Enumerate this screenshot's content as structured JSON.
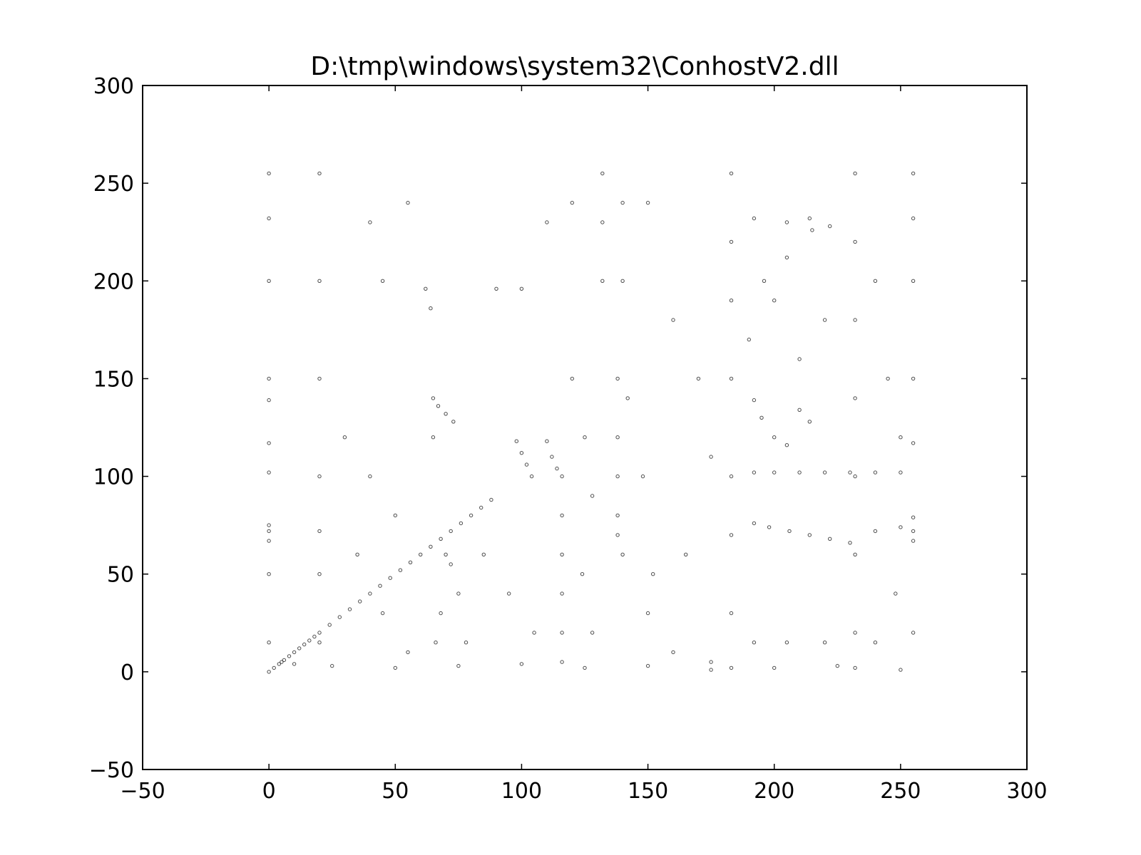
{
  "chart_data": {
    "type": "scatter",
    "title": "D:\\tmp\\windows\\system32\\ConhostV2.dll",
    "xlabel": "",
    "ylabel": "",
    "xlim": [
      -50,
      300
    ],
    "ylim": [
      -50,
      300
    ],
    "xticks": [
      -50,
      0,
      50,
      100,
      150,
      200,
      250,
      300
    ],
    "yticks": [
      -50,
      0,
      50,
      100,
      150,
      200,
      250,
      300
    ],
    "xtick_labels": [
      "−50",
      "0",
      "50",
      "100",
      "150",
      "200",
      "250",
      "300"
    ],
    "ytick_labels": [
      "−50",
      "0",
      "50",
      "100",
      "150",
      "200",
      "250",
      "300"
    ],
    "grid": false,
    "legend": "none",
    "marker_color": "#000000",
    "point_domain": {
      "x": [
        0,
        255
      ],
      "y": [
        0,
        255
      ]
    },
    "series": [
      {
        "points": [
          [
            0,
            0
          ],
          [
            2,
            2
          ],
          [
            4,
            4
          ],
          [
            6,
            6
          ],
          [
            8,
            8
          ],
          [
            10,
            10
          ],
          [
            12,
            12
          ],
          [
            14,
            14
          ],
          [
            16,
            16
          ],
          [
            18,
            18
          ],
          [
            20,
            20
          ],
          [
            24,
            24
          ],
          [
            28,
            28
          ],
          [
            32,
            32
          ],
          [
            36,
            36
          ],
          [
            40,
            40
          ],
          [
            44,
            44
          ],
          [
            48,
            48
          ],
          [
            52,
            52
          ],
          [
            56,
            56
          ],
          [
            60,
            60
          ],
          [
            64,
            64
          ],
          [
            68,
            68
          ],
          [
            72,
            72
          ],
          [
            76,
            76
          ],
          [
            80,
            80
          ],
          [
            84,
            84
          ],
          [
            88,
            88
          ],
          [
            0,
            255
          ],
          [
            0,
            232
          ],
          [
            0,
            200
          ],
          [
            0,
            150
          ],
          [
            0,
            139
          ],
          [
            0,
            117
          ],
          [
            0,
            102
          ],
          [
            0,
            75
          ],
          [
            0,
            72
          ],
          [
            0,
            67
          ],
          [
            0,
            50
          ],
          [
            0,
            15
          ],
          [
            20,
            255
          ],
          [
            20,
            200
          ],
          [
            20,
            150
          ],
          [
            20,
            100
          ],
          [
            20,
            72
          ],
          [
            20,
            50
          ],
          [
            20,
            15
          ],
          [
            65,
            140
          ],
          [
            67,
            136
          ],
          [
            70,
            132
          ],
          [
            73,
            128
          ],
          [
            65,
            120
          ],
          [
            70,
            60
          ],
          [
            72,
            55
          ],
          [
            75,
            40
          ],
          [
            68,
            30
          ],
          [
            66,
            15
          ],
          [
            78,
            15
          ],
          [
            98,
            118
          ],
          [
            100,
            112
          ],
          [
            102,
            106
          ],
          [
            104,
            100
          ],
          [
            110,
            118
          ],
          [
            112,
            110
          ],
          [
            114,
            104
          ],
          [
            116,
            100
          ],
          [
            116,
            80
          ],
          [
            116,
            60
          ],
          [
            116,
            40
          ],
          [
            116,
            20
          ],
          [
            116,
            5
          ],
          [
            132,
            255
          ],
          [
            132,
            230
          ],
          [
            132,
            200
          ],
          [
            138,
            150
          ],
          [
            138,
            120
          ],
          [
            138,
            100
          ],
          [
            138,
            80
          ],
          [
            138,
            70
          ],
          [
            140,
            60
          ],
          [
            140,
            200
          ],
          [
            140,
            240
          ],
          [
            183,
            255
          ],
          [
            183,
            220
          ],
          [
            183,
            190
          ],
          [
            183,
            150
          ],
          [
            183,
            100
          ],
          [
            183,
            70
          ],
          [
            183,
            30
          ],
          [
            183,
            2
          ],
          [
            192,
            139
          ],
          [
            195,
            130
          ],
          [
            200,
            120
          ],
          [
            205,
            116
          ],
          [
            210,
            134
          ],
          [
            214,
            128
          ],
          [
            192,
            102
          ],
          [
            200,
            102
          ],
          [
            210,
            102
          ],
          [
            220,
            102
          ],
          [
            230,
            102
          ],
          [
            240,
            102
          ],
          [
            250,
            102
          ],
          [
            192,
            76
          ],
          [
            198,
            74
          ],
          [
            206,
            72
          ],
          [
            214,
            70
          ],
          [
            222,
            68
          ],
          [
            230,
            66
          ],
          [
            240,
            72
          ],
          [
            250,
            74
          ],
          [
            192,
            15
          ],
          [
            205,
            15
          ],
          [
            220,
            15
          ],
          [
            240,
            15
          ],
          [
            232,
            255
          ],
          [
            232,
            220
          ],
          [
            232,
            180
          ],
          [
            232,
            140
          ],
          [
            232,
            100
          ],
          [
            232,
            60
          ],
          [
            232,
            20
          ],
          [
            232,
            2
          ],
          [
            255,
            255
          ],
          [
            255,
            232
          ],
          [
            255,
            200
          ],
          [
            255,
            150
          ],
          [
            255,
            117
          ],
          [
            255,
            79
          ],
          [
            255,
            72
          ],
          [
            255,
            67
          ],
          [
            255,
            20
          ],
          [
            192,
            232
          ],
          [
            205,
            230
          ],
          [
            214,
            232
          ],
          [
            222,
            228
          ],
          [
            196,
            200
          ],
          [
            205,
            212
          ],
          [
            215,
            226
          ],
          [
            40,
            230
          ],
          [
            45,
            200
          ],
          [
            55,
            240
          ],
          [
            62,
            196
          ],
          [
            64,
            186
          ],
          [
            90,
            196
          ],
          [
            100,
            196
          ],
          [
            110,
            230
          ],
          [
            120,
            240
          ],
          [
            150,
            240
          ],
          [
            160,
            180
          ],
          [
            170,
            150
          ],
          [
            175,
            110
          ],
          [
            165,
            60
          ],
          [
            150,
            30
          ],
          [
            160,
            10
          ],
          [
            175,
            5
          ],
          [
            30,
            120
          ],
          [
            40,
            100
          ],
          [
            50,
            80
          ],
          [
            35,
            60
          ],
          [
            45,
            30
          ],
          [
            55,
            10
          ],
          [
            85,
            60
          ],
          [
            95,
            40
          ],
          [
            105,
            20
          ],
          [
            120,
            150
          ],
          [
            125,
            120
          ],
          [
            128,
            90
          ],
          [
            124,
            50
          ],
          [
            128,
            20
          ],
          [
            142,
            140
          ],
          [
            148,
            100
          ],
          [
            152,
            50
          ],
          [
            190,
            170
          ],
          [
            200,
            190
          ],
          [
            210,
            160
          ],
          [
            220,
            180
          ],
          [
            240,
            200
          ],
          [
            245,
            150
          ],
          [
            250,
            120
          ],
          [
            248,
            40
          ],
          [
            5,
            5
          ],
          [
            10,
            4
          ],
          [
            25,
            3
          ],
          [
            50,
            2
          ],
          [
            75,
            3
          ],
          [
            100,
            4
          ],
          [
            125,
            2
          ],
          [
            150,
            3
          ],
          [
            175,
            1
          ],
          [
            200,
            2
          ],
          [
            225,
            3
          ],
          [
            250,
            1
          ]
        ]
      }
    ]
  }
}
